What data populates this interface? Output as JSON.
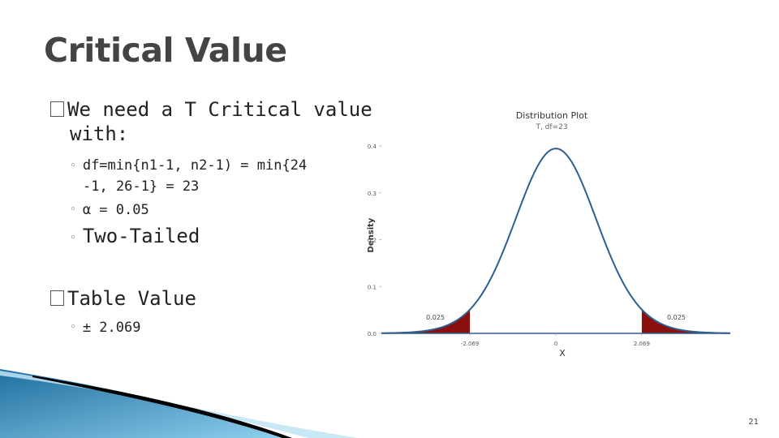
{
  "slide": {
    "title": "Critical Value",
    "page_number": "21",
    "bullets": {
      "need_line1": "We need a T Critical value",
      "need_line2": "with:",
      "df_line1": "df=min{n1-1, n2-1) = min{24",
      "df_line2": "-1, 26-1} = 23",
      "alpha": "α = 0.05",
      "tails": "Two-Tailed",
      "table_value_label": "Table Value",
      "table_value": "± 2.069"
    }
  },
  "chart_data": {
    "type": "area",
    "title": "Distribution Plot",
    "subtitle": "T, df=23",
    "xlabel": "X",
    "ylabel": "Density",
    "distribution": "t",
    "df": 23,
    "xlim": [
      -4.2,
      4.2
    ],
    "ylim": [
      0,
      0.4
    ],
    "y_ticks": [
      "0.0",
      "0.1",
      "0.2",
      "0.3",
      "0.4"
    ],
    "x_ticks": [
      "-2.069",
      "0",
      "2.069"
    ],
    "critical_values": [
      -2.069,
      2.069
    ],
    "tail_areas": [
      {
        "label": "0.025",
        "from": -4.2,
        "to": -2.069
      },
      {
        "label": "0.025",
        "from": 2.069,
        "to": 4.2
      }
    ],
    "colors": {
      "curve": "#2f5f8f",
      "tail_fill": "#8b0f0f"
    }
  }
}
